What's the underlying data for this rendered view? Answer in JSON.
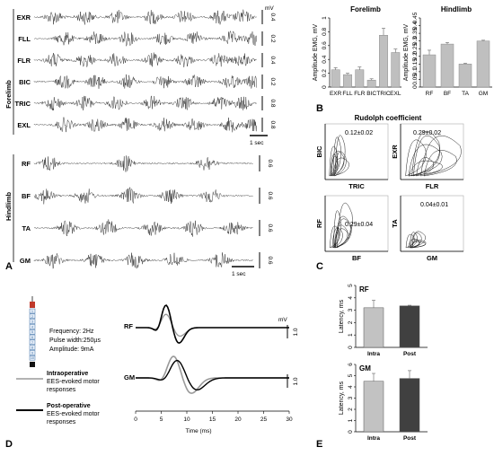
{
  "panel_a": {
    "label": "A",
    "forelimb": {
      "group_label": "Forelimb",
      "unit": "mV",
      "scale_label": "1 sec",
      "channels": [
        {
          "name": "EXR",
          "scale": "0.4"
        },
        {
          "name": "FLL",
          "scale": "0.2"
        },
        {
          "name": "FLR",
          "scale": "0.4"
        },
        {
          "name": "BIC",
          "scale": "0.2"
        },
        {
          "name": "TRIC",
          "scale": "0.8"
        },
        {
          "name": "EXL",
          "scale": "0.8"
        }
      ]
    },
    "hindlimb": {
      "group_label": "Hindlimb",
      "scale_label": "1 sec",
      "channels": [
        {
          "name": "RF",
          "scale": "0.6"
        },
        {
          "name": "BF",
          "scale": "0.6"
        },
        {
          "name": "TA",
          "scale": "0.6"
        },
        {
          "name": "GM",
          "scale": "0.6"
        }
      ]
    }
  },
  "panel_b": {
    "label": "B",
    "ylabel": "Amplitude EMG, mV",
    "colors": {
      "bar": "#bfbfbf",
      "edge": "#8a8a8a"
    },
    "chart_data": [
      {
        "type": "bar",
        "title": "Forelimb",
        "categories": [
          "EXR",
          "FLL",
          "FLR",
          "BIC",
          "TRIC",
          "EXL"
        ],
        "values": [
          0.25,
          0.18,
          0.25,
          0.1,
          0.75,
          0.5
        ],
        "errors": [
          0.03,
          0.02,
          0.04,
          0.02,
          0.1,
          0.05
        ],
        "ylim": [
          0,
          1
        ],
        "yticks": [
          "0",
          "0.2",
          "0.4",
          "0.6",
          "0.8",
          "1"
        ],
        "ylabel": "Amplitude EMG, mV"
      },
      {
        "type": "bar",
        "title": "Hindlimb",
        "categories": [
          "RF",
          "BF",
          "TA",
          "GM"
        ],
        "values": [
          0.21,
          0.28,
          0.15,
          0.3
        ],
        "errors": [
          0.03,
          0.01,
          0.005,
          0.005
        ],
        "ylim": [
          0,
          0.45
        ],
        "yticks": [
          "0",
          "0.05",
          "0.1",
          "0.15",
          "0.2",
          "0.25",
          "0.3",
          "0.35",
          "0.4",
          "0.45"
        ],
        "ylabel": "Amplitude EMG, mV"
      }
    ]
  },
  "panel_c": {
    "label": "C",
    "title": "Rudolph coefficient",
    "plots": [
      {
        "ylabel": "BIC",
        "xlabel": "TRIC",
        "value": "0.12±0.02"
      },
      {
        "ylabel": "EXR",
        "xlabel": "FLR",
        "value": "0.29±0.02"
      },
      {
        "ylabel": "RF",
        "xlabel": "BF",
        "value": "0.29±0.04"
      },
      {
        "ylabel": "TA",
        "xlabel": "GM",
        "value": "0.04±0.01"
      }
    ]
  },
  "panel_d": {
    "label": "D",
    "params": [
      "Frequency: 2Hz",
      "Pulse width:250µs",
      "Amplitude: 9mA"
    ],
    "electrode_numbers": [
      "1",
      "2",
      "3",
      "4",
      "5",
      "6",
      "7",
      "8",
      "9",
      "10"
    ],
    "legend": [
      {
        "title": "Intraoperative",
        "subtitle1": "EES-evoked motor",
        "subtitle2": "responses",
        "color": "#9a9a9a"
      },
      {
        "title": "Post-operative",
        "subtitle1": "EES-evoked motor",
        "subtitle2": "responses",
        "color": "#000000"
      }
    ],
    "traces": [
      {
        "name": "RF",
        "scale": "1.0"
      },
      {
        "name": "GM",
        "scale": "1.0"
      }
    ],
    "unit": "mV",
    "xlabel": "Time (ms)",
    "xticks": [
      "0",
      "5",
      "10",
      "15",
      "20",
      "25",
      "30"
    ]
  },
  "panel_e": {
    "label": "E",
    "colors": {
      "intra": "#c2c2c2",
      "post": "#404040"
    },
    "chart_data": [
      {
        "type": "bar",
        "title": "RF",
        "categories": [
          "Intra",
          "Post"
        ],
        "values": [
          3.2,
          3.35
        ],
        "errors": [
          0.6,
          0.05
        ],
        "ylim": [
          0,
          5
        ],
        "yticks": [
          "0",
          "1",
          "2",
          "3",
          "4",
          "5"
        ],
        "ylabel": "Latency, ms"
      },
      {
        "type": "bar",
        "title": "GM",
        "categories": [
          "Intra",
          "Post"
        ],
        "values": [
          4.5,
          4.75
        ],
        "errors": [
          0.7,
          0.7
        ],
        "ylim": [
          0,
          6
        ],
        "yticks": [
          "0",
          "1",
          "2",
          "3",
          "4",
          "5",
          "6"
        ],
        "ylabel": "Latency, ms"
      }
    ]
  }
}
